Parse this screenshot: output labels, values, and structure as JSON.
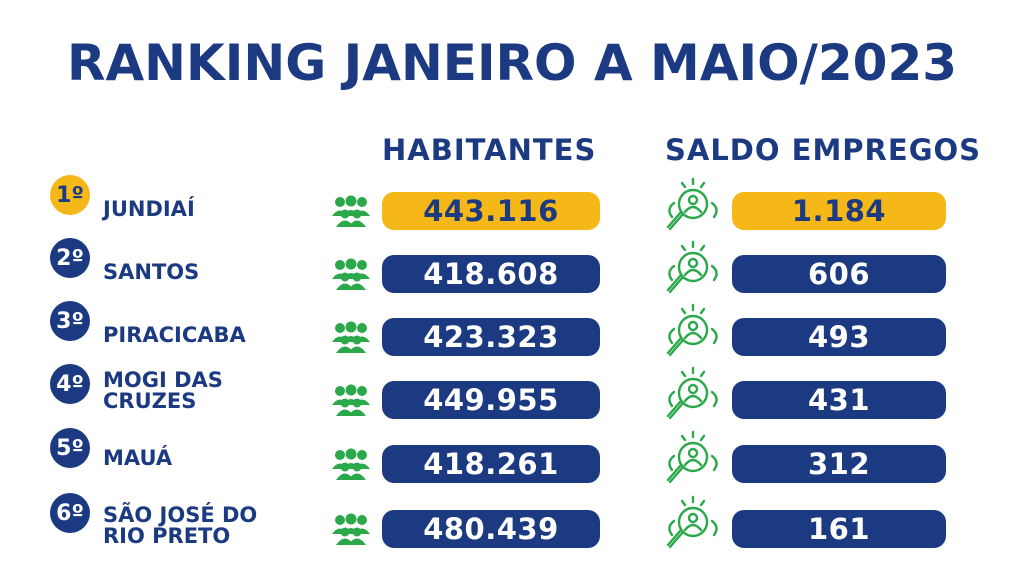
{
  "title": "RANKING JANEIRO A MAIO/2023",
  "columns": {
    "habitantes": "HABITANTES",
    "saldo": "SALDO EMPREGOS"
  },
  "colors": {
    "navy": "#1b3a82",
    "gold": "#f6b719",
    "green": "#2aa84a"
  },
  "icons": {
    "population": "people-group-icon",
    "employment": "search-person-icon"
  },
  "rows": [
    {
      "rank": "1º",
      "city": "JUNDIAÍ",
      "habitantes": "443.116",
      "saldo": "1.184"
    },
    {
      "rank": "2º",
      "city": "SANTOS",
      "habitantes": "418.608",
      "saldo": "606"
    },
    {
      "rank": "3º",
      "city": "PIRACICABA",
      "habitantes": "423.323",
      "saldo": "493"
    },
    {
      "rank": "4º",
      "city": "MOGI DAS\nCRUZES",
      "habitantes": "449.955",
      "saldo": "431"
    },
    {
      "rank": "5º",
      "city": "MAUÁ",
      "habitantes": "418.261",
      "saldo": "312"
    },
    {
      "rank": "6º",
      "city": "SÃO JOSÉ DO\nRIO PRETO",
      "habitantes": "480.439",
      "saldo": "161"
    }
  ]
}
